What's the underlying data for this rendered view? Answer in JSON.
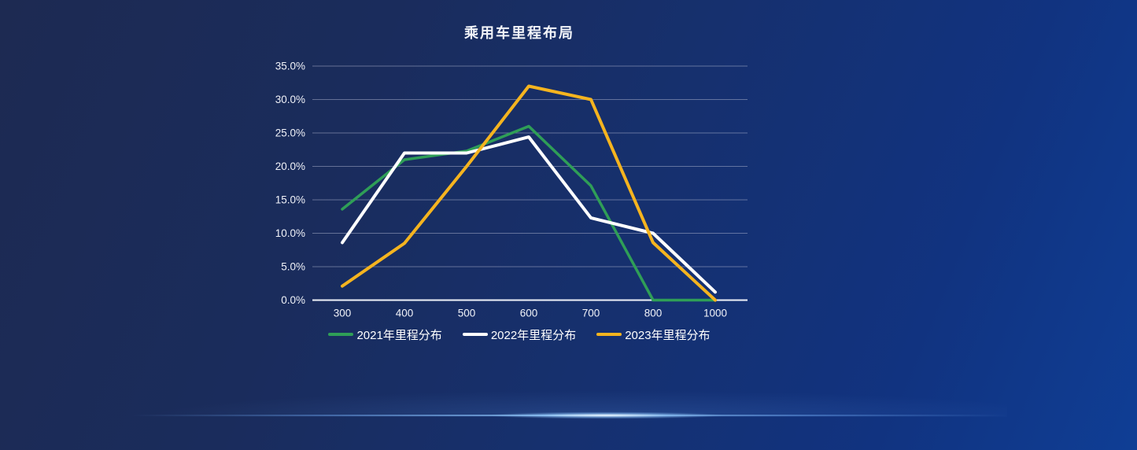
{
  "chart_data": {
    "type": "line",
    "title": "乘用车里程布局",
    "categories": [
      "300",
      "400",
      "500",
      "600",
      "700",
      "800",
      "1000"
    ],
    "series": [
      {
        "name": "2021年里程分布",
        "color": "#2f9e57",
        "stroke_width": 3.5,
        "values": [
          13.6,
          21.0,
          22.3,
          26.0,
          17.1,
          0.0,
          0.0
        ]
      },
      {
        "name": "2022年里程分布",
        "color": "#ffffff",
        "stroke_width": 4,
        "values": [
          8.6,
          22.0,
          22.0,
          24.4,
          12.3,
          10.0,
          1.2
        ]
      },
      {
        "name": "2023年里程分布",
        "color": "#f5b41f",
        "stroke_width": 4,
        "values": [
          2.1,
          8.5,
          20.0,
          32.0,
          30.0,
          8.6,
          0.0
        ]
      }
    ],
    "y_ticks_top_to_bottom": [
      "35.0%",
      "30.0%",
      "25.0%",
      "20.0%",
      "15.0%",
      "10.0%",
      "5.0%",
      "0.0%"
    ],
    "ylim": [
      0,
      35
    ],
    "y_tick_step": 5,
    "xlabel": "",
    "ylabel": "",
    "grid": true,
    "legend_position": "bottom"
  },
  "theme": {
    "background_gradient": [
      "#1d2a52",
      "#16306e",
      "#0f3e95"
    ],
    "gridline_color": "rgba(176,181,208,0.5)",
    "axis_line_color": "#eef1f8",
    "tick_label_color": "#f0f2f8",
    "legend_text_color": "#ffffff",
    "divider_glow_color": "#96cdff"
  }
}
